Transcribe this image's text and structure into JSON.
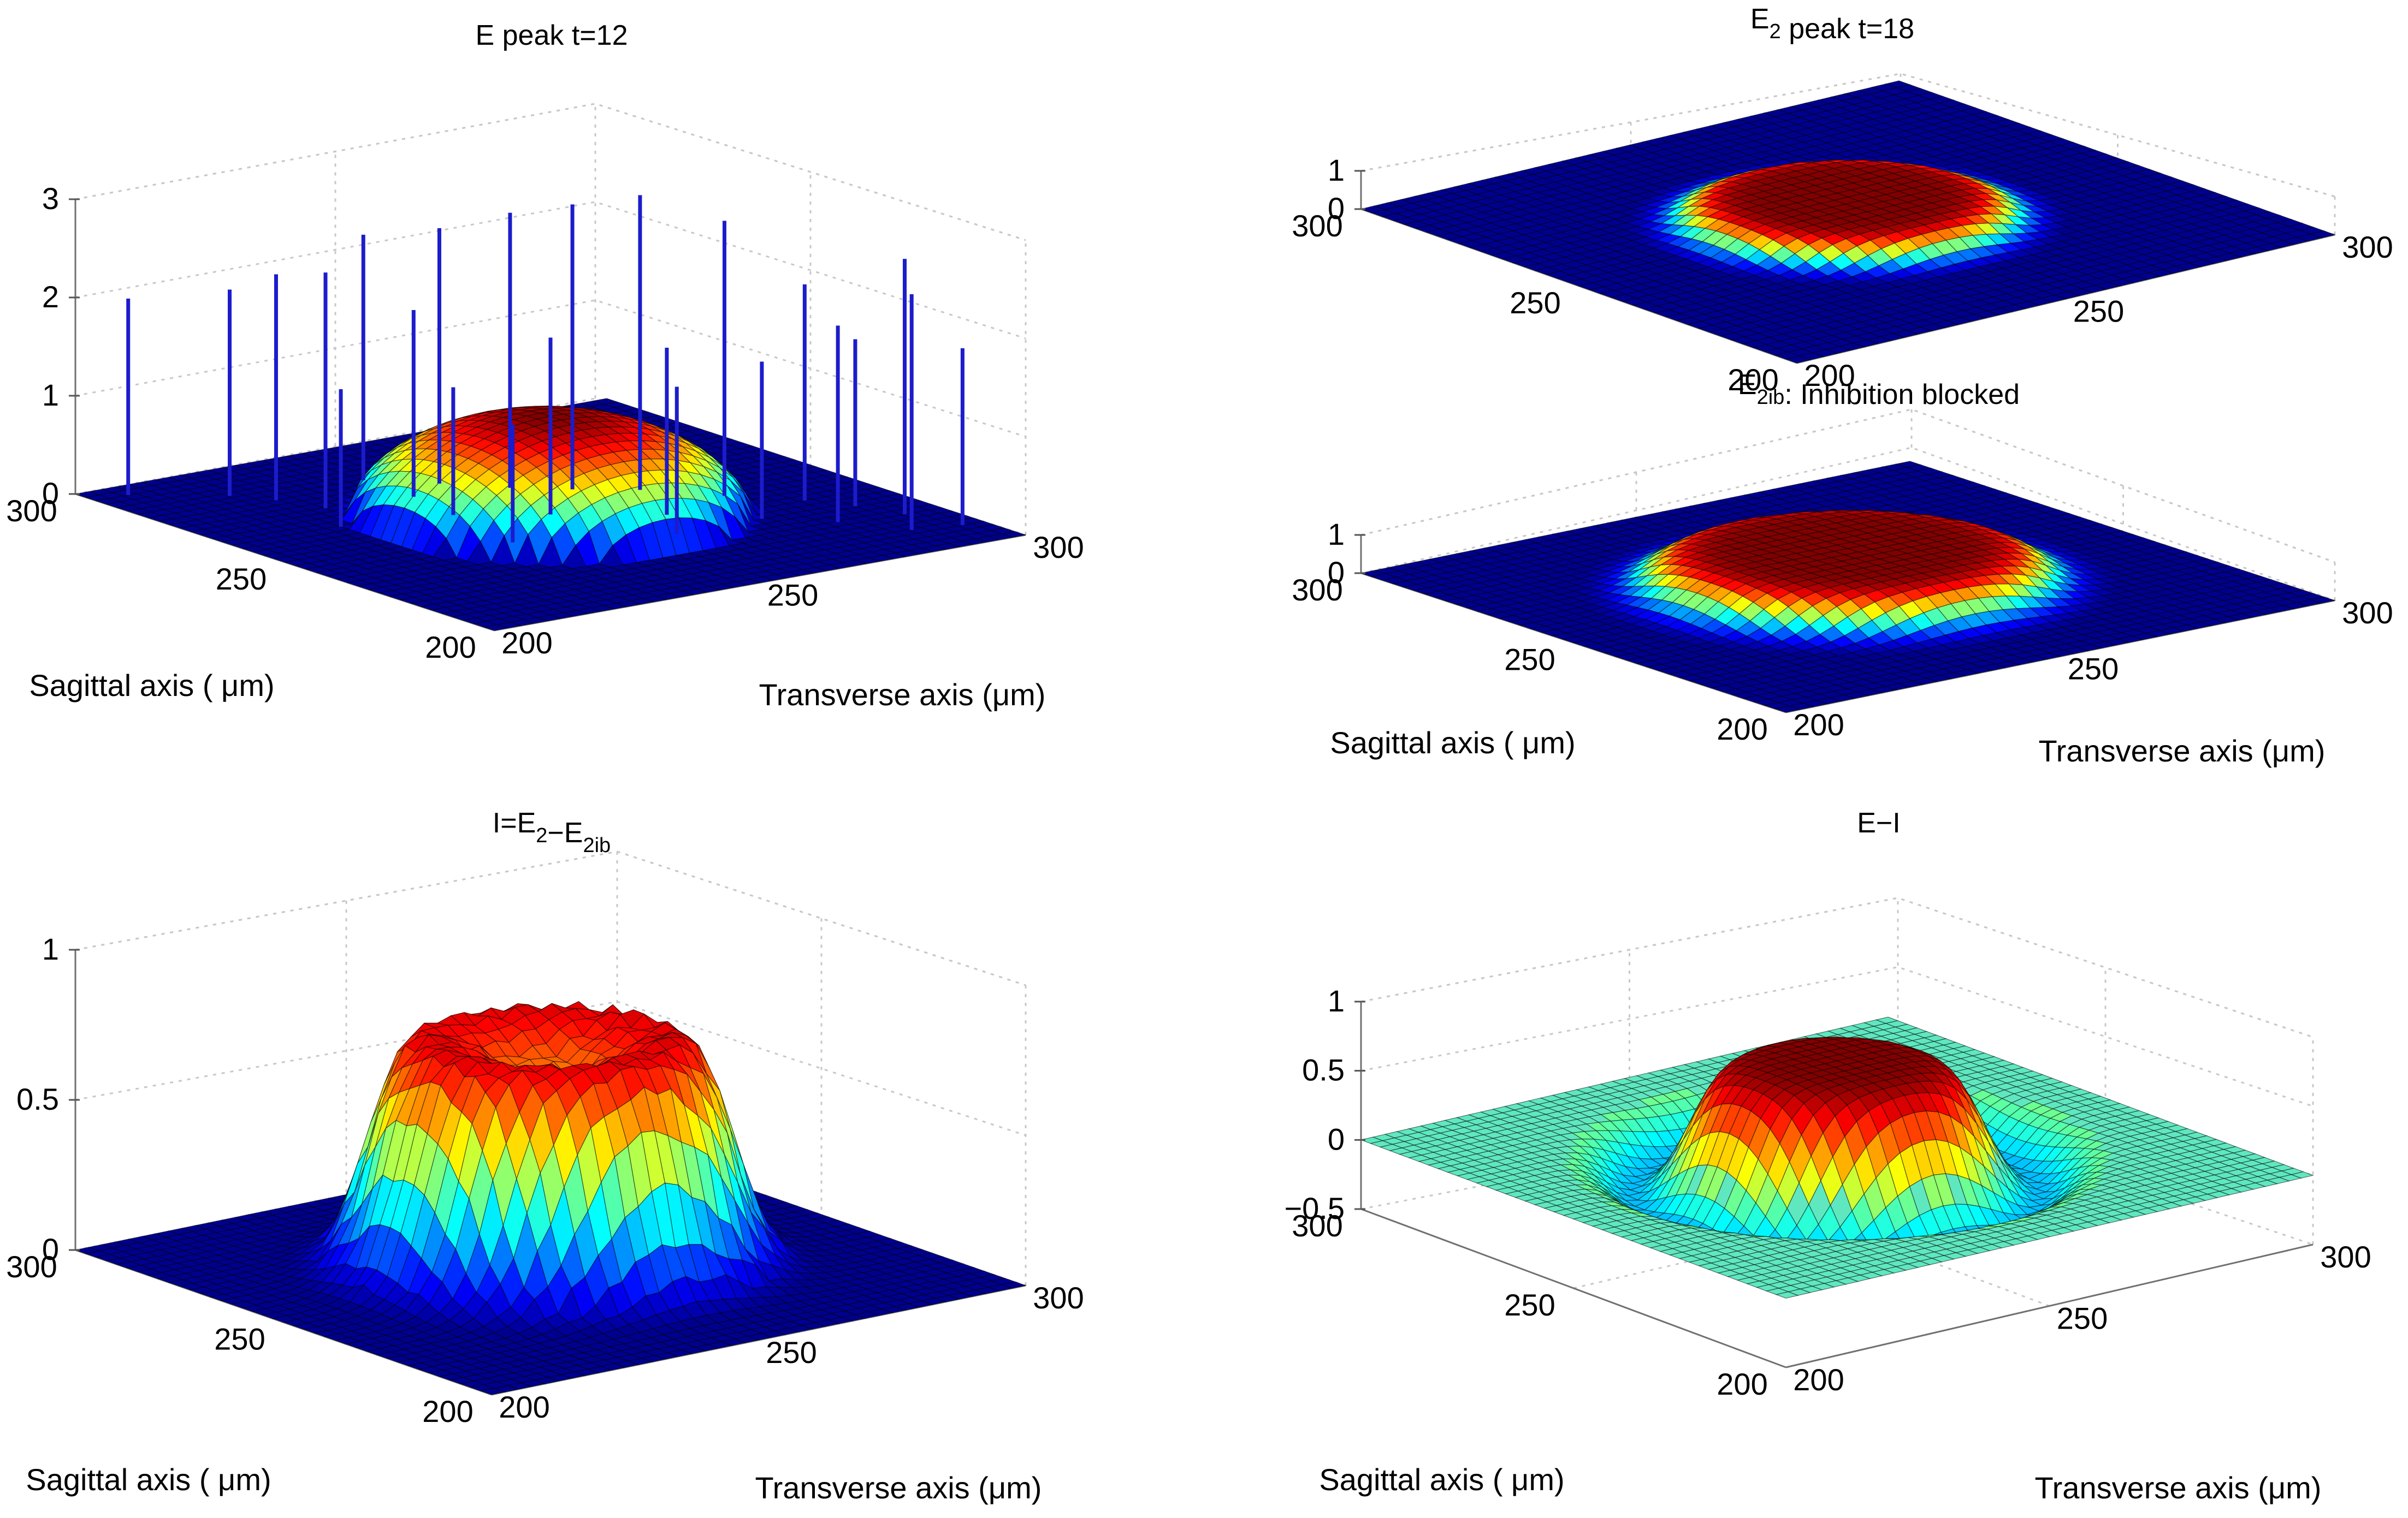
{
  "figure": {
    "colormap": "jet",
    "stem_color": "#1c1ccc",
    "floor_color": "#00008f",
    "net_floor_color": "#5fe8c0",
    "edge_color": "#000000"
  },
  "chart_data": [
    {
      "type": "surface",
      "id": "E",
      "title": "E peak t=12",
      "title_parts": [
        {
          "text": "E peak t=12",
          "sub": ""
        }
      ],
      "xlabel": "Transverse axis (μm)",
      "ylabel": "Sagittal axis ( μm)",
      "x_ticks": [
        "200",
        "250",
        "300"
      ],
      "y_ticks": [
        "200",
        "250",
        "300"
      ],
      "z_ticks": [
        "0",
        "1",
        "2",
        "3"
      ],
      "z_tick_values": [
        0,
        1,
        2,
        3
      ],
      "zlim": [
        0,
        3
      ],
      "shape": "dome",
      "peak": 1.0,
      "radius": 0.3,
      "stems": [
        {
          "x": 0.06,
          "y": 0.95,
          "z": 2.0
        },
        {
          "x": 0.18,
          "y": 0.86,
          "z": 2.1
        },
        {
          "x": 0.22,
          "y": 0.8,
          "z": 2.3
        },
        {
          "x": 0.25,
          "y": 0.72,
          "z": 2.4
        },
        {
          "x": 0.2,
          "y": 0.62,
          "z": 1.4
        },
        {
          "x": 0.4,
          "y": 0.82,
          "z": 2.5
        },
        {
          "x": 0.4,
          "y": 0.7,
          "z": 1.9
        },
        {
          "x": 0.38,
          "y": 0.58,
          "z": 1.3
        },
        {
          "x": 0.48,
          "y": 0.74,
          "z": 2.6
        },
        {
          "x": 0.55,
          "y": 0.66,
          "z": 2.8
        },
        {
          "x": 0.5,
          "y": 0.5,
          "z": 1.8
        },
        {
          "x": 0.62,
          "y": 0.6,
          "z": 2.9
        },
        {
          "x": 0.7,
          "y": 0.54,
          "z": 3.0
        },
        {
          "x": 0.64,
          "y": 0.4,
          "z": 1.7
        },
        {
          "x": 0.78,
          "y": 0.44,
          "z": 2.8
        },
        {
          "x": 0.74,
          "y": 0.3,
          "z": 1.6
        },
        {
          "x": 0.86,
          "y": 0.35,
          "z": 2.2
        },
        {
          "x": 0.82,
          "y": 0.22,
          "z": 2.0
        },
        {
          "x": 0.9,
          "y": 0.28,
          "z": 1.7
        },
        {
          "x": 0.93,
          "y": 0.2,
          "z": 2.6
        },
        {
          "x": 0.88,
          "y": 0.12,
          "z": 2.4
        },
        {
          "x": 0.96,
          "y": 0.1,
          "z": 1.8
        },
        {
          "x": 0.35,
          "y": 0.4,
          "z": 1.2
        },
        {
          "x": 0.58,
          "y": 0.3,
          "z": 1.5
        }
      ]
    },
    {
      "type": "surface",
      "id": "E2",
      "title": "E2 peak t=18",
      "title_parts": [
        {
          "text": "E",
          "sub": "2"
        },
        {
          "text": " peak t=18",
          "sub": ""
        }
      ],
      "xlabel": "",
      "ylabel": "",
      "x_ticks": [
        "200",
        "250",
        "300"
      ],
      "y_ticks": [
        "200",
        "250",
        "300"
      ],
      "z_ticks": [
        "0",
        "1"
      ],
      "z_tick_values": [
        0,
        1
      ],
      "zlim": [
        0,
        1
      ],
      "shape": "disk",
      "peak": 0.65,
      "radius": 0.28,
      "stems": []
    },
    {
      "type": "surface",
      "id": "E2ib",
      "title": "E2ib: Inhibition blocked",
      "title_parts": [
        {
          "text": "E",
          "sub": "2ib"
        },
        {
          "text": ": Inhibition blocked",
          "sub": ""
        }
      ],
      "xlabel": "Transverse axis (μm)",
      "ylabel": "Sagittal axis ( μm)",
      "x_ticks": [
        "200",
        "250",
        "300"
      ],
      "y_ticks": [
        "200",
        "250",
        "300"
      ],
      "z_ticks": [
        "0",
        "1"
      ],
      "z_tick_values": [
        0,
        1
      ],
      "zlim": [
        0,
        1
      ],
      "shape": "disk",
      "peak": 1.0,
      "radius": 0.34,
      "stems": []
    },
    {
      "type": "surface",
      "id": "I",
      "title": "I=E2−E2ib",
      "title_parts": [
        {
          "text": "I=E",
          "sub": "2"
        },
        {
          "text": "−E",
          "sub": "2ib"
        }
      ],
      "xlabel": "Transverse axis (μm)",
      "ylabel": "Sagittal axis ( μm)",
      "x_ticks": [
        "200",
        "250",
        "300"
      ],
      "y_ticks": [
        "200",
        "250",
        "300"
      ],
      "z_ticks": [
        "0",
        "0.5",
        "1"
      ],
      "z_tick_values": [
        0,
        0.5,
        1
      ],
      "zlim": [
        0,
        1
      ],
      "shape": "crater",
      "peak": 0.85,
      "radius": 0.34,
      "stems": []
    },
    {
      "type": "surface",
      "id": "EmI",
      "title": "E−I",
      "title_parts": [
        {
          "text": "E−I",
          "sub": ""
        }
      ],
      "xlabel": "Transverse axis (μm)",
      "ylabel": "Sagittal axis ( μm)",
      "x_ticks": [
        "200",
        "250",
        "300"
      ],
      "y_ticks": [
        "200",
        "250",
        "300"
      ],
      "z_ticks": [
        "−0.5",
        "0",
        "0.5",
        "1"
      ],
      "z_tick_values": [
        -0.5,
        0,
        0.5,
        1
      ],
      "zlim": [
        -0.5,
        1
      ],
      "shape": "mexican_hat",
      "peak": 0.7,
      "radius": 0.22,
      "stems": []
    }
  ]
}
